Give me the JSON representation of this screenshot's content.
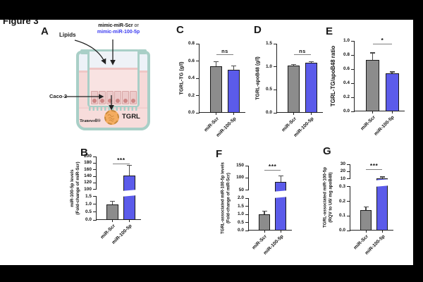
{
  "figure": {
    "label": "Figure 3"
  },
  "panelA": {
    "letter": "A",
    "lipids_label": "Lipids",
    "mimic_scr": "mimic-miR-Scr",
    "mimic_or": " or",
    "mimic_100": "mimic-miR-100-5p",
    "caco2_label": "Caco-2",
    "tgrl_label": "TGRL",
    "transwell_label": "Transwell®"
  },
  "colors": {
    "gray_bar": "#8c8c8c",
    "blue_bar": "#5b5bea",
    "mimic_blue": "#3b3bf0",
    "axis": "#222222",
    "error_bar": "#4a4a4a",
    "teal": "#a9cfc7",
    "pink_media": "#f6d9d8",
    "orange_tgrl": "#f4ac60"
  },
  "chart_data": [
    {
      "panel": "C",
      "type": "bar",
      "ylabel": [
        "TGRL-TG (g/l)"
      ],
      "categories": [
        "miR-Scr",
        "miR-100-5p"
      ],
      "values": [
        0.54,
        0.5
      ],
      "errors": [
        0.05,
        0.04
      ],
      "bar_colors": [
        "#8c8c8c",
        "#5b5bea"
      ],
      "significance": "ns",
      "ylim": [
        0,
        0.8
      ],
      "axis_break": null,
      "ticks": [
        {
          "v": 0,
          "label": "0.0"
        },
        {
          "v": 0.2,
          "label": "0.2"
        },
        {
          "v": 0.4,
          "label": "0.4"
        },
        {
          "v": 0.6,
          "label": "0.6"
        },
        {
          "v": 0.8,
          "label": "0.8"
        }
      ],
      "segments": [
        {
          "domain": [
            0,
            0.8
          ],
          "frac": [
            0,
            1
          ]
        }
      ]
    },
    {
      "panel": "D",
      "type": "bar",
      "ylabel": [
        "TGRL-apoB48 (g/l)"
      ],
      "categories": [
        "miR-Scr",
        "miR-100-5p"
      ],
      "values": [
        1.03,
        1.08
      ],
      "errors": [
        0.02,
        0.03
      ],
      "bar_colors": [
        "#8c8c8c",
        "#5b5bea"
      ],
      "significance": "ns",
      "ylim": [
        0,
        1.5
      ],
      "axis_break": null,
      "ticks": [
        {
          "v": 0,
          "label": "0.0"
        },
        {
          "v": 0.5,
          "label": "0.5"
        },
        {
          "v": 1.0,
          "label": "1.0"
        },
        {
          "v": 1.5,
          "label": "1.5"
        }
      ],
      "segments": [
        {
          "domain": [
            0,
            1.5
          ],
          "frac": [
            0,
            1
          ]
        }
      ]
    },
    {
      "panel": "E",
      "type": "bar",
      "ylabel": [
        "TGRL-TG/apoB48 ratio"
      ],
      "categories": [
        "miR-Scr",
        "miR-100-5p"
      ],
      "values": [
        0.73,
        0.54
      ],
      "errors": [
        0.1,
        0.02
      ],
      "bar_colors": [
        "#8c8c8c",
        "#5b5bea"
      ],
      "significance": "*",
      "ylim": [
        0,
        1.0
      ],
      "axis_break": null,
      "ticks": [
        {
          "v": 0,
          "label": "0.0"
        },
        {
          "v": 0.2,
          "label": "0.2"
        },
        {
          "v": 0.4,
          "label": "0.4"
        },
        {
          "v": 0.6,
          "label": "0.6"
        },
        {
          "v": 0.8,
          "label": "0.8"
        },
        {
          "v": 1.0,
          "label": "1.0"
        }
      ],
      "segments": [
        {
          "domain": [
            0,
            1.0
          ],
          "frac": [
            0,
            1
          ]
        }
      ]
    },
    {
      "panel": "B",
      "type": "bar",
      "ylabel": [
        "miR-100-5p levels",
        "(Fold-change of miR-Scr)"
      ],
      "categories": [
        "miR-Scr",
        "miR-100-5p"
      ],
      "values": [
        1.0,
        142
      ],
      "errors": [
        0.2,
        32
      ],
      "bar_colors": [
        "#8c8c8c",
        "#5b5bea"
      ],
      "significance": "***",
      "ylim": [
        0,
        200
      ],
      "axis_break": [
        1.5,
        100
      ],
      "ticks": [
        {
          "v": 0,
          "label": "0.0"
        },
        {
          "v": 0.5,
          "label": "0.5"
        },
        {
          "v": 1.0,
          "label": "1.0"
        },
        {
          "v": 1.5,
          "label": "1.5"
        },
        {
          "v": 100,
          "label": "100"
        },
        {
          "v": 120,
          "label": "120"
        },
        {
          "v": 140,
          "label": "140"
        },
        {
          "v": 160,
          "label": "160"
        },
        {
          "v": 180,
          "label": "180"
        },
        {
          "v": 200,
          "label": "200"
        }
      ],
      "segments": [
        {
          "domain": [
            0,
            1.5
          ],
          "frac": [
            0,
            0.37
          ]
        },
        {
          "domain": [
            100,
            200
          ],
          "frac": [
            0.48,
            1
          ]
        }
      ]
    },
    {
      "panel": "F",
      "type": "bar",
      "ylabel": [
        "TGRL-associated miR-100-5p levels",
        "(Fold-change of miR-Scr)"
      ],
      "categories": [
        "miR-Scr",
        "miR-100-5p"
      ],
      "values": [
        1.0,
        85
      ],
      "errors": [
        0.2,
        23
      ],
      "bar_colors": [
        "#8c8c8c",
        "#5b5bea"
      ],
      "significance": "***",
      "ylim": [
        0,
        150
      ],
      "axis_break": [
        2.0,
        50
      ],
      "ticks": [
        {
          "v": 0,
          "label": "0.0"
        },
        {
          "v": 0.5,
          "label": "0.5"
        },
        {
          "v": 1.0,
          "label": "1.0"
        },
        {
          "v": 1.5,
          "label": "1.5"
        },
        {
          "v": 2.0,
          "label": "2.0"
        },
        {
          "v": 50,
          "label": "50"
        },
        {
          "v": 100,
          "label": "100"
        },
        {
          "v": 150,
          "label": "150"
        }
      ],
      "segments": [
        {
          "domain": [
            0,
            2.0
          ],
          "frac": [
            0,
            0.5
          ]
        },
        {
          "domain": [
            50,
            150
          ],
          "frac": [
            0.62,
            1
          ]
        }
      ]
    },
    {
      "panel": "G",
      "type": "bar",
      "ylabel": [
        "TGRL-associated miR-100-5p",
        "(RQV to U6/ mg apoB48)"
      ],
      "categories": [
        "miR-Scr",
        "miR-100-5p"
      ],
      "values": [
        0.14,
        10.8
      ],
      "errors": [
        0.02,
        1.8
      ],
      "bar_colors": [
        "#8c8c8c",
        "#5b5bea"
      ],
      "significance": "***",
      "ylim": [
        0,
        30
      ],
      "axis_break": [
        0.3,
        10
      ],
      "ticks": [
        {
          "v": 0,
          "label": "0.0"
        },
        {
          "v": 0.1,
          "label": "0.1"
        },
        {
          "v": 0.2,
          "label": "0.2"
        },
        {
          "v": 0.3,
          "label": "0.3"
        },
        {
          "v": 10,
          "label": "10"
        },
        {
          "v": 20,
          "label": "20"
        },
        {
          "v": 30,
          "label": "30"
        }
      ],
      "segments": [
        {
          "domain": [
            0,
            0.3
          ],
          "frac": [
            0,
            0.66
          ]
        },
        {
          "domain": [
            10,
            30
          ],
          "frac": [
            0.78,
            1
          ]
        }
      ]
    }
  ]
}
